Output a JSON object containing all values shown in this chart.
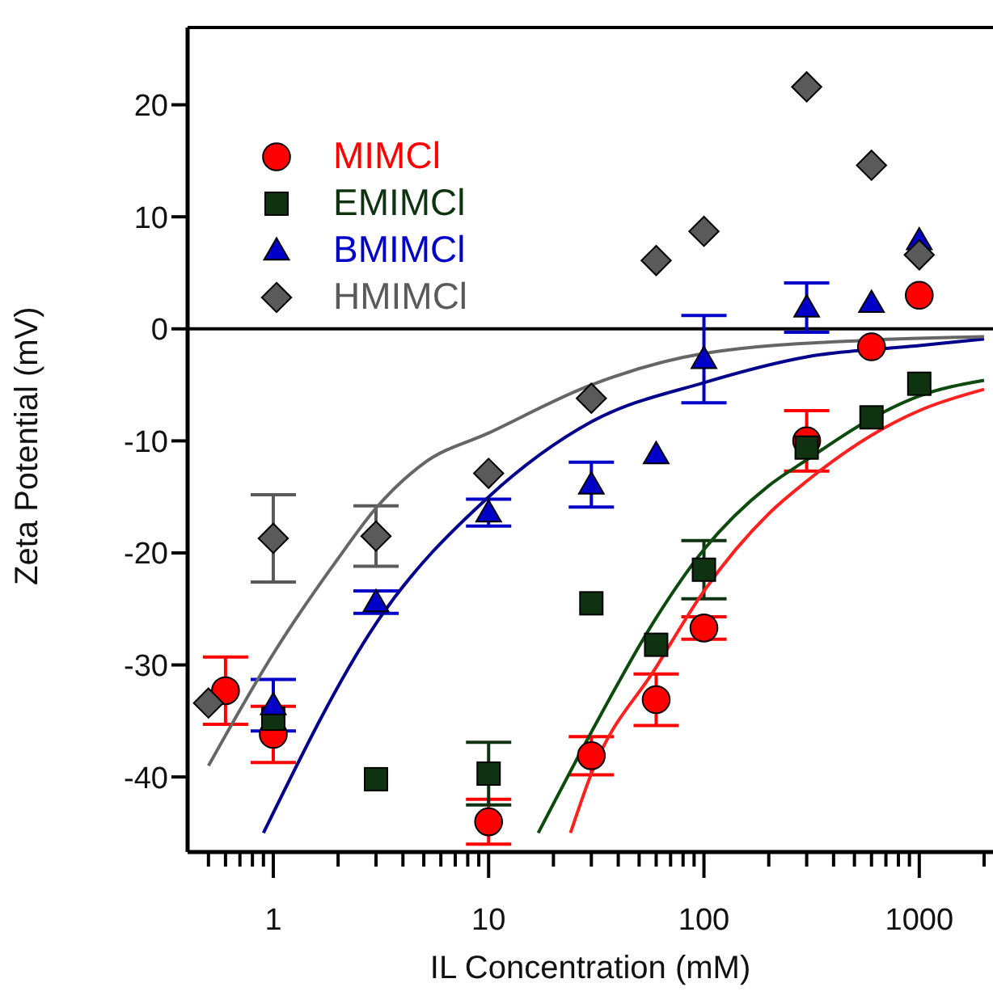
{
  "chart_data": {
    "type": "scatter",
    "xlabel": "IL Concentration (mM)",
    "ylabel": "Zeta Potential (mV)",
    "log": "x",
    "xlim": [
      0.4,
      2200
    ],
    "xticks": [
      {
        "value": 0.5,
        "label": null
      },
      {
        "value": 0.6,
        "label": null
      },
      {
        "value": 0.7,
        "label": null
      },
      {
        "value": 0.8,
        "label": null
      },
      {
        "value": 0.9,
        "label": null
      },
      1,
      {
        "value": 2,
        "label": null
      },
      {
        "value": 3,
        "label": null
      },
      {
        "value": 4,
        "label": null
      },
      {
        "value": 5,
        "label": null
      },
      {
        "value": 6,
        "label": null
      },
      {
        "value": 7,
        "label": null
      },
      {
        "value": 8,
        "label": null
      },
      {
        "value": 9,
        "label": null
      },
      10,
      {
        "value": 20,
        "label": null
      },
      {
        "value": 30,
        "label": null
      },
      {
        "value": 40,
        "label": null
      },
      {
        "value": 50,
        "label": null
      },
      {
        "value": 60,
        "label": null
      },
      {
        "value": 70,
        "label": null
      },
      {
        "value": 80,
        "label": null
      },
      {
        "value": 90,
        "label": null
      },
      100,
      {
        "value": 200,
        "label": null
      },
      {
        "value": 300,
        "label": null
      },
      {
        "value": 400,
        "label": null
      },
      {
        "value": 500,
        "label": null
      },
      {
        "value": 600,
        "label": null
      },
      {
        "value": 700,
        "label": null
      },
      {
        "value": 800,
        "label": null
      },
      {
        "value": 900,
        "label": null
      },
      1000,
      {
        "value": 2000,
        "label": null
      }
    ],
    "ylim": [
      -46.7,
      26.9
    ],
    "yticks": [
      -40,
      -30,
      -20,
      -10,
      0,
      10,
      20
    ],
    "grid": false,
    "legend": "top left",
    "ref_lines": [
      {
        "axis": "y",
        "value": 0,
        "color": "#000000"
      }
    ],
    "series": [
      {
        "name": "MIMCl",
        "marker": "circle",
        "color": "#ff0000",
        "x": [
          0.6,
          1,
          3,
          10,
          30,
          60,
          100,
          300,
          600,
          1000
        ],
        "values": [
          -32.3,
          -36.2,
          null,
          -44,
          -38.1,
          -33.1,
          -26.7,
          -10,
          -1.6,
          3
        ],
        "errors": [
          3,
          2.5,
          null,
          2,
          1.7,
          2.3,
          1,
          2.7,
          null,
          null
        ]
      },
      {
        "name": "EMIMCl",
        "marker": "square",
        "color": "#0f3310",
        "x": [
          1,
          3,
          10,
          30,
          60,
          100,
          300,
          600,
          1000
        ],
        "values": [
          -34.8,
          -40.2,
          -39.7,
          -24.5,
          -28.2,
          -21.5,
          -10.6,
          -7.9,
          -4.9
        ],
        "errors": [
          null,
          null,
          2.8,
          null,
          null,
          2.6,
          null,
          null,
          null
        ]
      },
      {
        "name": "BMIMCl",
        "marker": "triangle",
        "color": "#0000c8",
        "x": [
          1,
          3,
          10,
          30,
          60,
          100,
          300,
          600,
          1000
        ],
        "values": [
          -33.6,
          -24.4,
          -16.4,
          -13.9,
          -11.2,
          -2.7,
          1.9,
          2.3,
          7.9
        ],
        "errors": [
          2.3,
          1,
          1.2,
          2,
          null,
          3.9,
          2.2,
          null,
          null
        ]
      },
      {
        "name": "HMIMCl",
        "marker": "diamond",
        "color": "#5a5a5a",
        "x": [
          0.5,
          1,
          3,
          10,
          30,
          60,
          100,
          300,
          600,
          1000
        ],
        "values": [
          -33.4,
          -18.7,
          -18.5,
          -12.9,
          -6.2,
          6.1,
          8.7,
          21.6,
          14.6,
          6.6
        ],
        "errors": [
          null,
          3.9,
          2.7,
          null,
          null,
          null,
          null,
          null,
          null,
          null
        ]
      },
      {
        "type": "line",
        "color": "#ff2020",
        "x": [
          24,
          30,
          60,
          100,
          200,
          300,
          600,
          1000,
          2000
        ],
        "values": [
          -45,
          -39.7,
          -30.2,
          -23.4,
          -16.5,
          -13.6,
          -9.5,
          -7.3,
          -5.4
        ]
      },
      {
        "type": "line",
        "color": "#0d4a0d",
        "x": [
          17,
          30,
          60,
          100,
          200,
          300,
          600,
          1000,
          2000
        ],
        "values": [
          -45,
          -36,
          -25.8,
          -19.7,
          -14,
          -11.7,
          -8,
          -6,
          -4.6
        ]
      },
      {
        "type": "line",
        "color": "#00008b",
        "x": [
          0.9,
          3,
          10,
          30,
          100,
          300,
          1000,
          2000
        ],
        "values": [
          -45,
          -26.3,
          -15,
          -8.3,
          -4.8,
          -2.5,
          -1.5,
          -0.9
        ]
      },
      {
        "type": "line",
        "color": "#666666",
        "x": [
          0.5,
          1,
          2,
          3,
          5,
          10,
          30,
          100,
          600,
          2000
        ],
        "values": [
          -39,
          -29,
          -20.5,
          -16,
          -12,
          -9.3,
          -5,
          -2.2,
          -1,
          -0.7
        ]
      }
    ]
  }
}
